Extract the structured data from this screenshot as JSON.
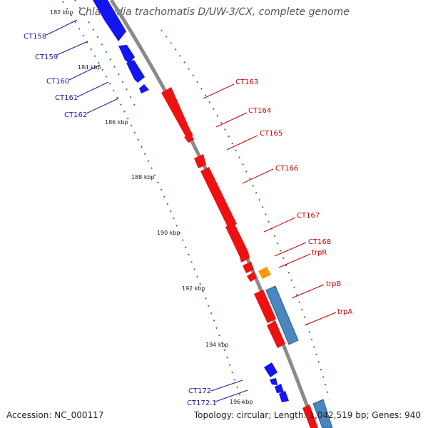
{
  "title": "Chlamydia trachomatis D/UW-3/CX, complete genome",
  "footer": {
    "accession": "Accession: NC_000117",
    "summary": "Topology: circular; Length: 1,042,519 bp; Genes: 940"
  },
  "colors": {
    "backbone": "#8a8a8a",
    "reverse_strand": "#1414ee",
    "forward_strand": "#ee1111",
    "trpR": "#ff9900",
    "trpBA": "#4b86c0",
    "ticks": "#2e8b2e",
    "label_reverse": "#1a1aa6",
    "label_forward": "#cc0000"
  },
  "scale_labels": [
    "182 kbp",
    "184 kbp",
    "186 kbp",
    "188 kbp",
    "190 kbp",
    "192 kbp",
    "194 kbp",
    "196 kbp"
  ],
  "genes": {
    "reverse": [
      "CT158",
      "CT159",
      "CT160",
      "CT161",
      "CT162",
      "CT172",
      "CT172.1"
    ],
    "forward": [
      "CT163",
      "CT164",
      "CT165",
      "CT166",
      "CT167",
      "CT168",
      "trpR",
      "trpB",
      "trpA"
    ]
  }
}
